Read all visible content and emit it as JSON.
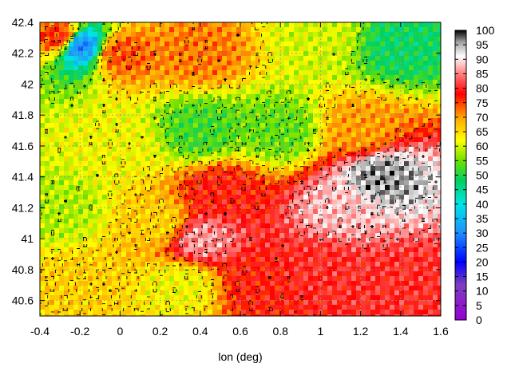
{
  "chart_data": {
    "type": "heatmap",
    "title": "",
    "xlabel": "lon (deg)",
    "ylabel": "",
    "xlim": [
      -0.4,
      1.6
    ],
    "ylim": [
      40.5,
      42.4
    ],
    "x_ticks": [
      -0.4,
      -0.2,
      0,
      0.2,
      0.4,
      0.6,
      0.8,
      1,
      1.2,
      1.4,
      1.6
    ],
    "x_tick_labels": [
      "-0.4",
      "-0.2",
      "0",
      "0.2",
      "0.4",
      "0.6",
      "0.8",
      "1",
      "1.2",
      "1.4",
      "1.6"
    ],
    "y_ticks": [
      40.6,
      40.8,
      41,
      41.2,
      41.4,
      41.6,
      41.8,
      42,
      42.2,
      42.4
    ],
    "y_tick_labels": [
      "40.6",
      "40.8",
      "41",
      "41.2",
      "41.4",
      "41.6",
      "41.8",
      "42",
      "42.2",
      "42.4"
    ],
    "grid": true,
    "colorbar": {
      "range": [
        0,
        100
      ],
      "ticks": [
        0,
        5,
        10,
        15,
        20,
        25,
        30,
        35,
        40,
        45,
        50,
        55,
        60,
        65,
        70,
        75,
        80,
        85,
        90,
        95,
        100
      ],
      "tick_labels": [
        "0",
        "5",
        "10",
        "15",
        "20",
        "25",
        "30",
        "35",
        "40",
        "45",
        "50",
        "55",
        "60",
        "65",
        "70",
        "75",
        "80",
        "85",
        "90",
        "95",
        "100"
      ],
      "palette": [
        [
          0,
          "#9400d3"
        ],
        [
          12,
          "#7f3fbf"
        ],
        [
          20,
          "#0000ff"
        ],
        [
          30,
          "#1e90ff"
        ],
        [
          40,
          "#00e5e5"
        ],
        [
          48,
          "#00d060"
        ],
        [
          55,
          "#70e000"
        ],
        [
          62,
          "#ffff00"
        ],
        [
          70,
          "#ffa500"
        ],
        [
          78,
          "#ff0000"
        ],
        [
          85,
          "#ff8080"
        ],
        [
          91,
          "#ffffff"
        ],
        [
          96,
          "#a0a0a0"
        ],
        [
          100,
          "#000000"
        ]
      ]
    },
    "field": {
      "description_free": true,
      "samples": [
        {
          "lon": -0.3,
          "lat": 42.3,
          "value": 76
        },
        {
          "lon": -0.2,
          "lat": 42.25,
          "value": 30
        },
        {
          "lon": 0.0,
          "lat": 42.2,
          "value": 74
        },
        {
          "lon": 0.4,
          "lat": 42.2,
          "value": 72
        },
        {
          "lon": 1.0,
          "lat": 42.3,
          "value": 60
        },
        {
          "lon": 1.4,
          "lat": 42.25,
          "value": 48
        },
        {
          "lon": 0.0,
          "lat": 41.6,
          "value": 62
        },
        {
          "lon": 0.4,
          "lat": 41.7,
          "value": 52
        },
        {
          "lon": 0.8,
          "lat": 41.7,
          "value": 54
        },
        {
          "lon": 1.2,
          "lat": 41.7,
          "value": 70
        },
        {
          "lon": -0.3,
          "lat": 41.2,
          "value": 58
        },
        {
          "lon": 0.2,
          "lat": 41.1,
          "value": 66
        },
        {
          "lon": 0.5,
          "lat": 41.3,
          "value": 78
        },
        {
          "lon": 1.3,
          "lat": 41.4,
          "value": 96
        },
        {
          "lon": 1.1,
          "lat": 41.2,
          "value": 88
        },
        {
          "lon": 1.0,
          "lat": 40.8,
          "value": 80
        },
        {
          "lon": 1.4,
          "lat": 40.7,
          "value": 80
        },
        {
          "lon": 0.7,
          "lat": 40.7,
          "value": 78
        },
        {
          "lon": 0.3,
          "lat": 40.7,
          "value": 62
        },
        {
          "lon": -0.2,
          "lat": 40.7,
          "value": 66
        },
        {
          "lon": 0.4,
          "lat": 41.0,
          "value": 86
        }
      ]
    }
  }
}
